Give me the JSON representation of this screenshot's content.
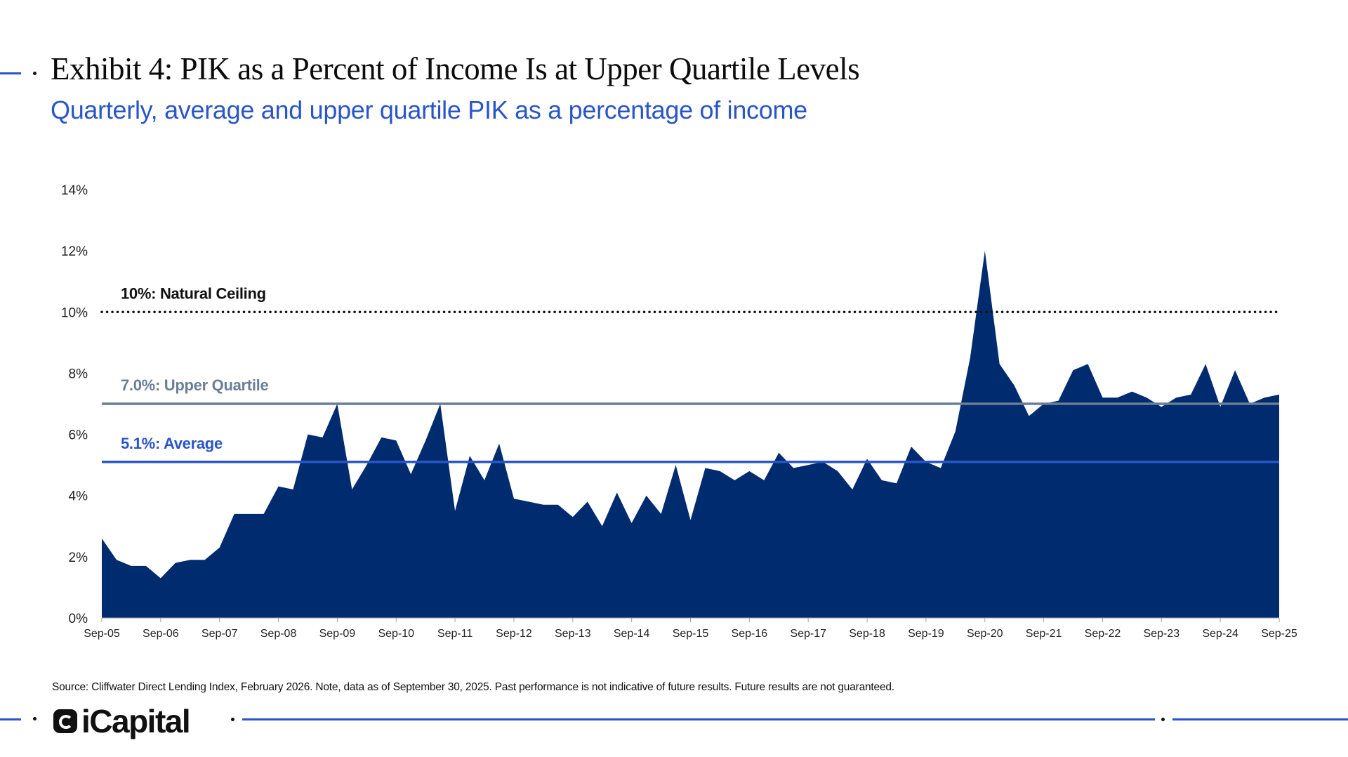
{
  "header": {
    "title": "Exhibit 4: PIK as a Percent of Income Is at Upper Quartile Levels",
    "subtitle": "Quarterly, average and upper quartile PIK as a percentage of income"
  },
  "footer": {
    "source": "Source: Cliffwater Direct Lending Index, February 2026. Note, data as of September 30, 2025. Past performance is not indicative of future results. Future results are not guaranteed.",
    "logo_text": "iCapital"
  },
  "colors": {
    "area": "#002c6f",
    "accent": "#2a55c8",
    "upper_quartile": "#6a7f96",
    "ceiling": "#111111",
    "text": "#111111"
  },
  "chart_data": {
    "type": "area",
    "xlabel": "",
    "ylabel": "",
    "ylim": [
      0,
      14
    ],
    "yticks": [
      "0%",
      "2%",
      "4%",
      "6%",
      "8%",
      "10%",
      "12%",
      "14%"
    ],
    "xtick_labels": [
      "Sep-05",
      "Sep-06",
      "Sep-07",
      "Sep-08",
      "Sep-09",
      "Sep-10",
      "Sep-11",
      "Sep-12",
      "Sep-13",
      "Sep-14",
      "Sep-15",
      "Sep-16",
      "Sep-17",
      "Sep-18",
      "Sep-19",
      "Sep-20",
      "Sep-21",
      "Sep-22",
      "Sep-23",
      "Sep-24",
      "Sep-25"
    ],
    "grid": false,
    "series": [
      {
        "values": [
          2.6,
          1.9,
          1.7,
          1.7,
          1.3,
          1.8,
          1.9,
          1.9,
          2.3,
          3.4,
          3.4,
          3.4,
          4.3,
          4.2,
          6.0,
          5.9,
          7.0,
          4.2,
          5.0,
          5.9,
          5.8,
          4.7,
          5.8,
          7.0,
          3.5,
          5.3,
          4.5,
          5.7,
          3.9,
          3.8,
          3.7,
          3.7,
          3.3,
          3.8,
          3.0,
          4.1,
          3.1,
          4.0,
          3.4,
          5.0,
          3.2,
          4.9,
          4.8,
          4.5,
          4.8,
          4.5,
          5.4,
          4.9,
          5.0,
          5.1,
          4.8,
          4.2,
          5.2,
          4.5,
          4.4,
          5.6,
          5.1,
          4.9,
          6.1,
          8.5,
          12.0,
          8.3,
          7.6,
          6.6,
          7.0,
          7.1,
          8.1,
          8.3,
          7.2,
          7.2,
          7.4,
          7.2,
          6.9,
          7.2,
          7.3,
          8.3,
          6.9,
          8.1,
          7.0,
          7.2,
          7.3
        ]
      }
    ],
    "reference_lines": [
      {
        "value": 10.0,
        "label": "10%: Natural Ceiling",
        "style": "dotted"
      },
      {
        "value": 7.0,
        "label": "7.0%: Upper Quartile",
        "style": "solid"
      },
      {
        "value": 5.1,
        "label": "5.1%: Average",
        "style": "solid"
      }
    ]
  }
}
